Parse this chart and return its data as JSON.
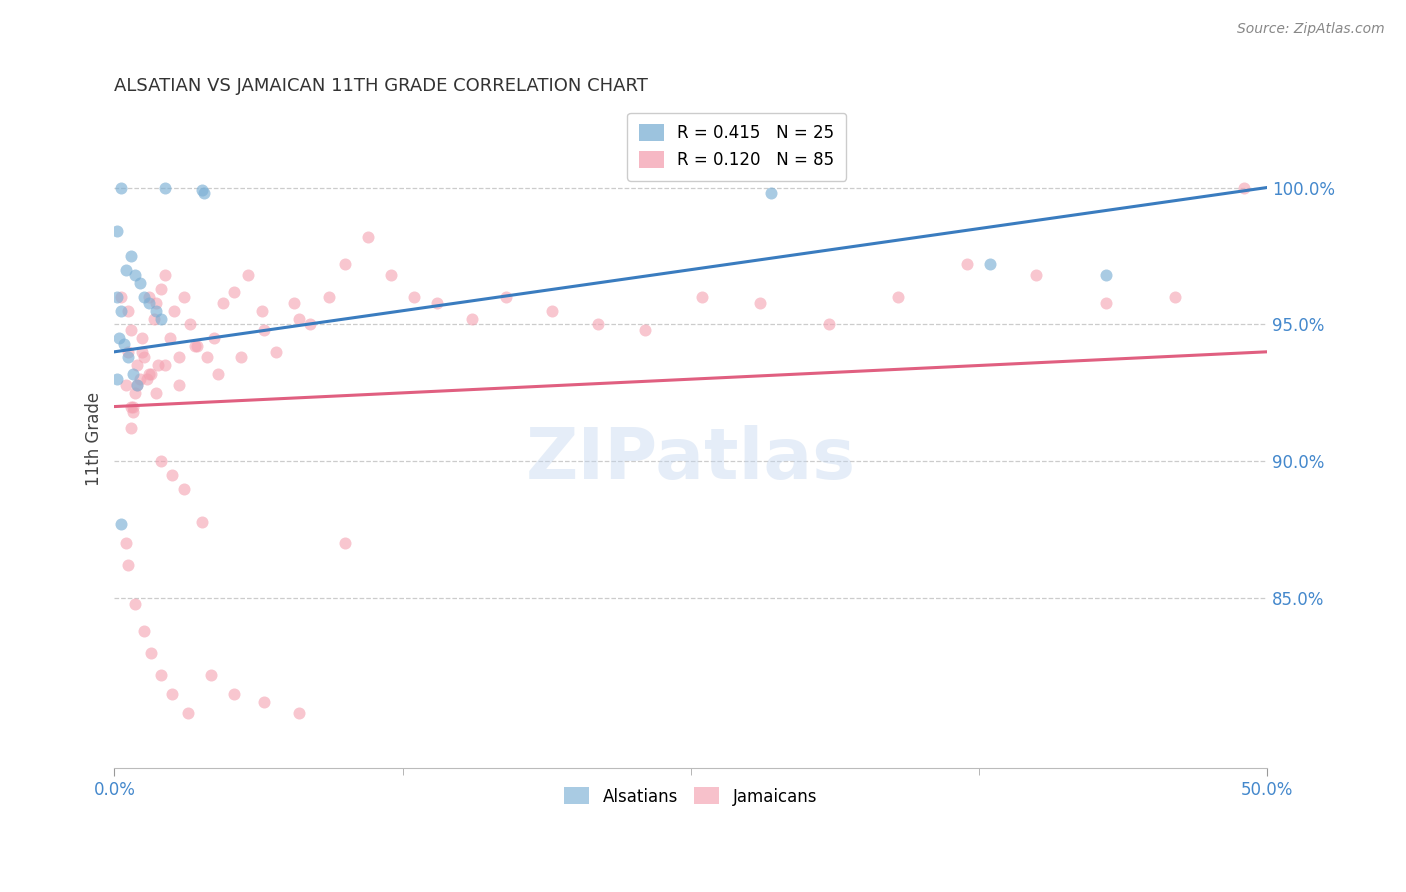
{
  "title": "ALSATIAN VS JAMAICAN 11TH GRADE CORRELATION CHART",
  "source": "Source: ZipAtlas.com",
  "ylabel": "11th Grade",
  "xmin": 0.0,
  "xmax": 0.5,
  "ymin": 0.788,
  "ymax": 1.028,
  "alsatian_color": "#7bafd4",
  "jamaican_color": "#f4a0b0",
  "alsatian_line_color": "#3a7cbf",
  "jamaican_line_color": "#e05f80",
  "legend_label_alsatian": "R = 0.415   N = 25",
  "legend_label_jamaican": "R = 0.120   N = 85",
  "ytick_values": [
    0.85,
    0.9,
    0.95,
    1.0
  ],
  "ytick_labels": [
    "85.0%",
    "90.0%",
    "95.0%",
    "100.0%"
  ],
  "axis_color": "#4488cc",
  "grid_color": "#cccccc",
  "background_color": "#ffffff",
  "marker_size": 75,
  "alsatian_line_x0": 0.0,
  "alsatian_line_y0": 0.94,
  "alsatian_line_x1": 0.5,
  "alsatian_line_y1": 1.0,
  "jamaican_line_x0": 0.0,
  "jamaican_line_y0": 0.92,
  "jamaican_line_x1": 0.5,
  "jamaican_line_y1": 0.94,
  "alsatian_x": [
    0.001,
    0.003,
    0.022,
    0.038,
    0.039,
    0.005,
    0.007,
    0.009,
    0.011,
    0.013,
    0.015,
    0.018,
    0.02,
    0.002,
    0.004,
    0.006,
    0.008,
    0.01,
    0.001,
    0.003,
    0.285,
    0.38,
    0.43,
    0.003,
    0.001
  ],
  "alsatian_y": [
    0.984,
    1.0,
    1.0,
    0.999,
    0.998,
    0.97,
    0.975,
    0.968,
    0.965,
    0.96,
    0.958,
    0.955,
    0.952,
    0.945,
    0.943,
    0.938,
    0.932,
    0.928,
    0.96,
    0.955,
    0.998,
    0.972,
    0.968,
    0.877,
    0.93
  ],
  "jamaican_x": [
    0.003,
    0.005,
    0.006,
    0.006,
    0.007,
    0.008,
    0.009,
    0.01,
    0.011,
    0.012,
    0.013,
    0.014,
    0.015,
    0.016,
    0.017,
    0.018,
    0.019,
    0.02,
    0.022,
    0.024,
    0.026,
    0.028,
    0.03,
    0.033,
    0.036,
    0.04,
    0.043,
    0.047,
    0.052,
    0.058,
    0.064,
    0.07,
    0.078,
    0.085,
    0.093,
    0.1,
    0.11,
    0.12,
    0.13,
    0.14,
    0.155,
    0.17,
    0.19,
    0.21,
    0.23,
    0.255,
    0.28,
    0.31,
    0.34,
    0.37,
    0.4,
    0.43,
    0.46,
    0.49,
    0.007,
    0.007,
    0.008,
    0.01,
    0.012,
    0.015,
    0.018,
    0.022,
    0.028,
    0.035,
    0.045,
    0.055,
    0.065,
    0.08,
    0.02,
    0.025,
    0.03,
    0.038,
    0.005,
    0.006,
    0.009,
    0.013,
    0.016,
    0.02,
    0.025,
    0.032,
    0.042,
    0.052,
    0.065,
    0.08,
    0.1
  ],
  "jamaican_y": [
    0.96,
    0.928,
    0.955,
    0.94,
    0.948,
    0.92,
    0.925,
    0.935,
    0.93,
    0.945,
    0.938,
    0.93,
    0.96,
    0.932,
    0.952,
    0.958,
    0.935,
    0.963,
    0.968,
    0.945,
    0.955,
    0.938,
    0.96,
    0.95,
    0.942,
    0.938,
    0.945,
    0.958,
    0.962,
    0.968,
    0.955,
    0.94,
    0.958,
    0.95,
    0.96,
    0.972,
    0.982,
    0.968,
    0.96,
    0.958,
    0.952,
    0.96,
    0.955,
    0.95,
    0.948,
    0.96,
    0.958,
    0.95,
    0.96,
    0.972,
    0.968,
    0.958,
    0.96,
    1.0,
    0.92,
    0.912,
    0.918,
    0.928,
    0.94,
    0.932,
    0.925,
    0.935,
    0.928,
    0.942,
    0.932,
    0.938,
    0.948,
    0.952,
    0.9,
    0.895,
    0.89,
    0.878,
    0.87,
    0.862,
    0.848,
    0.838,
    0.83,
    0.822,
    0.815,
    0.808,
    0.822,
    0.815,
    0.812,
    0.808,
    0.87
  ],
  "watermark_text": "ZIPatlas",
  "watermark_color": "#c0d4ee",
  "watermark_alpha": 0.4
}
